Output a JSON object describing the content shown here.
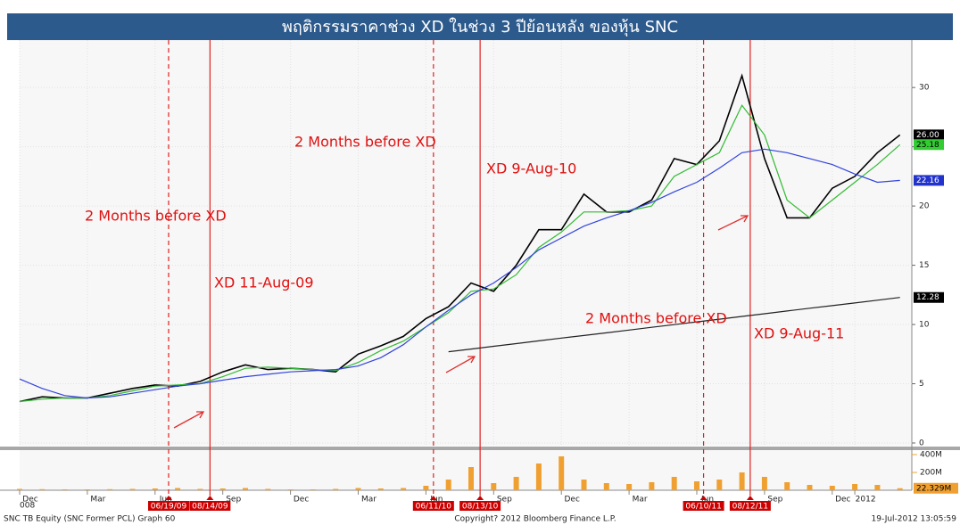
{
  "chart_data": {
    "type": "line",
    "title": "พฤติกรรมราคาช่วง XD ในช่วง 3 ปีย้อนหลัง ของหุ้น SNC",
    "categories": [
      "Dec",
      null,
      null,
      "Mar",
      null,
      null,
      "Jun",
      null,
      null,
      "Sep",
      null,
      null,
      "Dec",
      null,
      null,
      "Mar",
      null,
      null,
      "Jun",
      null,
      null,
      "Sep",
      null,
      null,
      "Dec",
      null,
      null,
      "Mar",
      null,
      null,
      "Jun",
      null,
      null,
      "Sep",
      null,
      null,
      "Dec",
      "2012",
      null,
      null
    ],
    "year_label": "008",
    "ylim": [
      0,
      34
    ],
    "yticks": [
      0,
      5,
      10,
      15,
      20,
      25,
      30
    ],
    "grid": true,
    "series": [
      {
        "color": "#000000",
        "values": [
          3.5,
          3.9,
          3.8,
          3.8,
          4.2,
          4.6,
          4.9,
          4.8,
          5.2,
          6.0,
          6.6,
          6.2,
          6.3,
          6.2,
          6.0,
          7.5,
          8.2,
          9.0,
          10.5,
          11.5,
          13.5,
          12.8,
          15.0,
          18.0,
          18.0,
          21.0,
          19.5,
          19.5,
          20.5,
          24.0,
          23.5,
          25.5,
          31.0,
          24.0,
          19.0,
          19.0,
          21.5,
          22.5,
          24.5,
          26
        ],
        "value_labels": [
          null,
          null,
          null,
          null,
          null,
          null,
          null,
          null,
          null,
          null,
          null,
          null,
          null,
          null,
          null,
          null,
          null,
          null,
          null,
          null,
          null,
          null,
          null,
          null,
          null,
          null,
          null,
          null,
          null,
          null,
          null,
          null,
          null,
          null,
          null,
          null,
          null,
          null,
          null,
          "26.00"
        ],
        "label_bg": "#000000",
        "label_fg": "#ffffff"
      },
      {
        "color": "#33bb33",
        "values": [
          3.5,
          3.7,
          3.8,
          3.8,
          4.0,
          4.4,
          4.8,
          4.9,
          5.0,
          5.6,
          6.3,
          6.4,
          6.3,
          6.2,
          6.1,
          6.8,
          7.8,
          8.6,
          9.8,
          11.0,
          12.8,
          13.0,
          14.2,
          16.5,
          17.8,
          19.5,
          19.5,
          19.6,
          20.0,
          22.5,
          23.5,
          24.5,
          28.5,
          26.0,
          20.5,
          19.0,
          20.5,
          22.0,
          23.5,
          25.18
        ],
        "value_labels": [
          null,
          null,
          null,
          null,
          null,
          null,
          null,
          null,
          null,
          null,
          null,
          null,
          null,
          null,
          null,
          null,
          null,
          null,
          null,
          null,
          null,
          null,
          null,
          null,
          null,
          null,
          null,
          null,
          null,
          null,
          null,
          null,
          null,
          null,
          null,
          null,
          null,
          null,
          null,
          null
        ],
        "label_bg": "#33cc33",
        "label_fg": "#000000"
      },
      {
        "color": "#3344dd",
        "values": [
          5.4,
          4.6,
          4.0,
          3.8,
          3.9,
          4.2,
          4.5,
          4.8,
          5.0,
          5.3,
          5.6,
          5.8,
          6.0,
          6.1,
          6.2,
          6.5,
          7.2,
          8.3,
          9.8,
          11.2,
          12.5,
          13.5,
          14.8,
          16.3,
          17.3,
          18.3,
          19.0,
          19.6,
          20.3,
          21.2,
          22.0,
          23.2,
          24.5,
          24.8,
          24.5,
          24.0,
          23.5,
          22.7,
          22.0,
          22.16
        ],
        "value_labels": [
          null,
          null,
          null,
          null,
          null,
          null,
          null,
          null,
          null,
          null,
          null,
          null,
          null,
          null,
          null,
          null,
          null,
          null,
          null,
          null,
          null,
          null,
          null,
          null,
          null,
          null,
          null,
          null,
          null,
          null,
          null,
          null,
          null,
          null,
          null,
          null,
          null,
          null,
          null,
          null
        ],
        "label_bg": "#2233cc",
        "label_fg": "#ffffff"
      },
      {
        "color": "#222222",
        "values": [
          null,
          null,
          null,
          null,
          null,
          null,
          null,
          null,
          null,
          null,
          null,
          null,
          null,
          null,
          null,
          null,
          null,
          null,
          null,
          7.7,
          7.93,
          8.16,
          8.39,
          8.62,
          8.85,
          9.07,
          9.3,
          9.53,
          9.76,
          9.99,
          10.22,
          10.45,
          10.68,
          10.91,
          11.14,
          11.37,
          11.59,
          11.82,
          12.05,
          12.28
        ],
        "value_labels": [
          null,
          null,
          null,
          null,
          null,
          null,
          null,
          null,
          null,
          null,
          null,
          null,
          null,
          null,
          null,
          null,
          null,
          null,
          null,
          null,
          null,
          null,
          null,
          null,
          null,
          null,
          null,
          null,
          null,
          null,
          null,
          null,
          null,
          null,
          null,
          null,
          null,
          null,
          null,
          null
        ],
        "label_bg": "#000000",
        "label_fg": "#ffffff"
      }
    ],
    "volume": {
      "color": "#f0a030",
      "ylim": [
        0,
        450000000
      ],
      "yticks": [
        {
          "value": 200000000,
          "label": "200M"
        },
        {
          "value": 400000000,
          "label": "400M"
        }
      ],
      "values": [
        15000000,
        12000000,
        10000000,
        10000000,
        12000000,
        15000000,
        20000000,
        25000000,
        15000000,
        20000000,
        25000000,
        15000000,
        10000000,
        10000000,
        15000000,
        25000000,
        20000000,
        25000000,
        50000000,
        120000000,
        260000000,
        80000000,
        150000000,
        300000000,
        380000000,
        120000000,
        80000000,
        70000000,
        90000000,
        150000000,
        100000000,
        120000000,
        200000000,
        150000000,
        90000000,
        60000000,
        50000000,
        70000000,
        60000000,
        22329000
      ],
      "last_label": "22.329M"
    },
    "events": [
      {
        "date": "06/19/09",
        "style": "dashed"
      },
      {
        "date": "08/14/09",
        "style": "solid"
      },
      {
        "date": "06/11/10",
        "style": "dashed"
      },
      {
        "date": "08/13/10",
        "style": "solid"
      },
      {
        "date": "06/10/11",
        "style": "dashed"
      },
      {
        "date": "08/12/11",
        "style": "solid"
      }
    ],
    "annotations": [
      "2 Months before XD",
      "XD 11-Aug-09",
      "2 Months before XD",
      "XD 9-Aug-10",
      "2 Months before XD",
      "XD 9-Aug-11"
    ],
    "footer": {
      "left": "SNC TB Equity (SNC Former PCL) Graph 60",
      "center": "Copyright? 2012 Bloomberg Finance L.P.",
      "right": "19-Jul-2012 13:05:59"
    }
  }
}
